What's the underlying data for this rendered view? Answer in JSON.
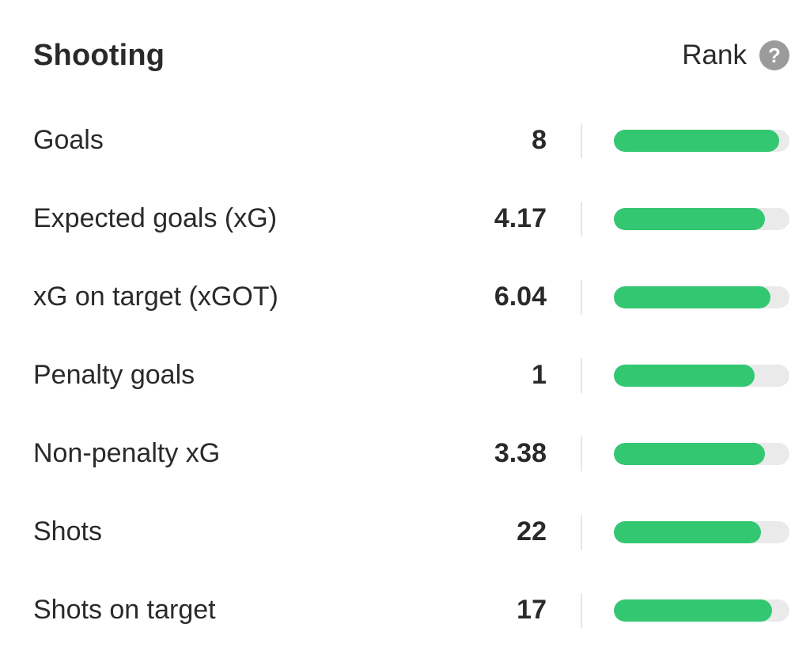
{
  "header": {
    "title": "Shooting",
    "rank_label": "Rank",
    "help_glyph": "?"
  },
  "accent_color": "#33c772",
  "track_color": "#eaeaea",
  "stats": [
    {
      "label": "Goals",
      "value": "8",
      "rank_fraction": 0.94
    },
    {
      "label": "Expected goals (xG)",
      "value": "4.17",
      "rank_fraction": 0.86
    },
    {
      "label": "xG on target (xGOT)",
      "value": "6.04",
      "rank_fraction": 0.89
    },
    {
      "label": "Penalty goals",
      "value": "1",
      "rank_fraction": 0.8
    },
    {
      "label": "Non-penalty xG",
      "value": "3.38",
      "rank_fraction": 0.86
    },
    {
      "label": "Shots",
      "value": "22",
      "rank_fraction": 0.84
    },
    {
      "label": "Shots on target",
      "value": "17",
      "rank_fraction": 0.9
    }
  ]
}
